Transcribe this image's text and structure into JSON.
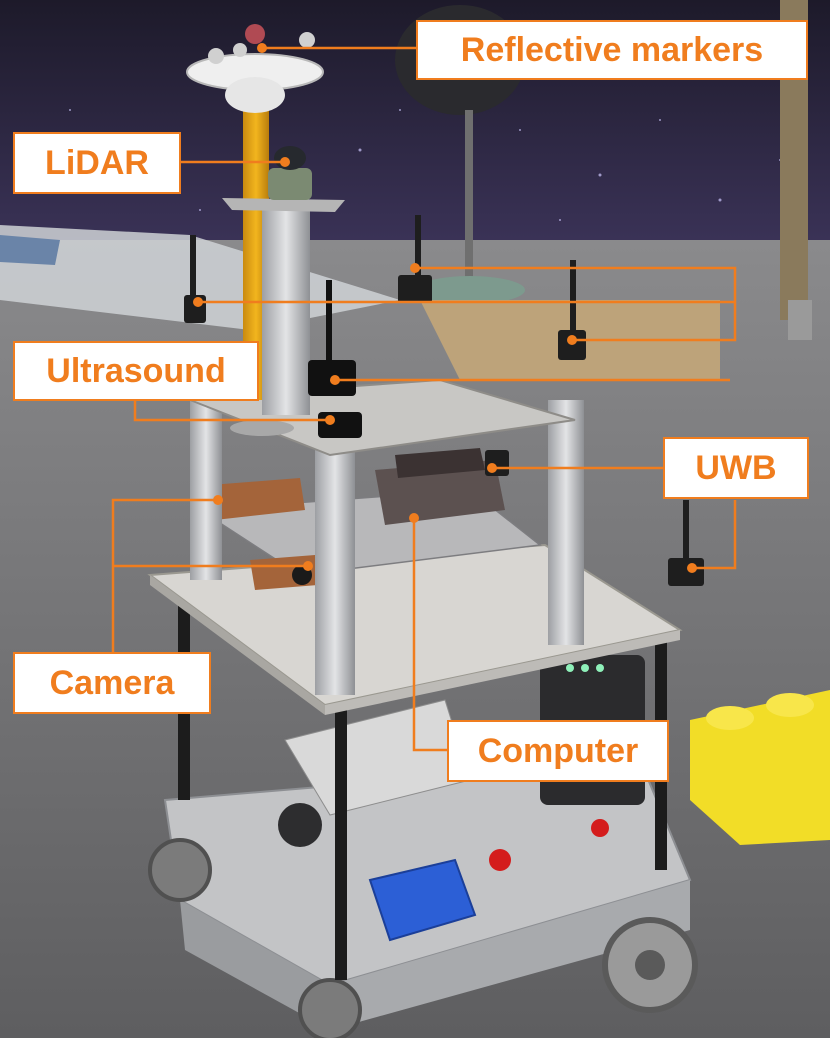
{
  "labels": {
    "reflective_markers": "Reflective markers",
    "lidar": "LiDAR",
    "ultrasound": "Ultrasound",
    "uwb": "UWB",
    "camera": "Camera",
    "computer": "Computer"
  },
  "colors": {
    "callout_orange": "#f07d1e",
    "callout_fill": "#ffffff",
    "backdrop_wall": "#2b2440",
    "floor_carpet": "#6f6f70",
    "lidar_mast": "#e6a516",
    "yellow_block": "#f2dd27",
    "aluminium": "#c9c9c9",
    "battery_blue": "#2c5fd6"
  }
}
